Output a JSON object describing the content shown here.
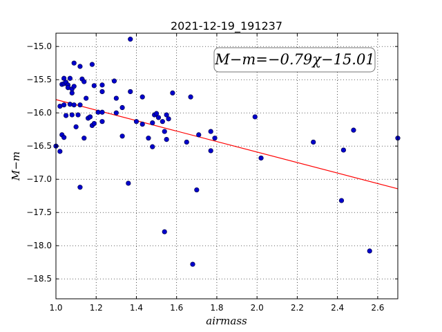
{
  "chart_data": {
    "type": "scatter",
    "title": "2021-12-19_191237",
    "xlabel": "airmass",
    "ylabel": "M−m",
    "xlim": [
      1.0,
      2.7
    ],
    "ylim": [
      -14.8,
      -18.8
    ],
    "y_inverted": true,
    "xticks": [
      "1.0",
      "1.2",
      "1.4",
      "1.6",
      "1.8",
      "2.0",
      "2.2",
      "2.4",
      "2.6"
    ],
    "yticks": [
      "−15.0",
      "−15.5",
      "−16.0",
      "−16.5",
      "−17.0",
      "−17.5",
      "−18.0",
      "−18.5"
    ],
    "grid": true,
    "annotation": "M−m=−0.79χ−15.01",
    "fit": {
      "slope": -0.79,
      "intercept": -15.01,
      "color": "#ff0000"
    },
    "point_color": "#0000cc",
    "points": [
      [
        1.0,
        -16.5
      ],
      [
        1.02,
        -16.58
      ],
      [
        1.02,
        -15.9
      ],
      [
        1.03,
        -16.33
      ],
      [
        1.04,
        -16.37
      ],
      [
        1.03,
        -15.57
      ],
      [
        1.04,
        -15.48
      ],
      [
        1.04,
        -15.56
      ],
      [
        1.05,
        -15.54
      ],
      [
        1.06,
        -15.58
      ],
      [
        1.06,
        -15.62
      ],
      [
        1.07,
        -15.48
      ],
      [
        1.04,
        -15.88
      ],
      [
        1.08,
        -15.7
      ],
      [
        1.08,
        -15.64
      ],
      [
        1.09,
        -15.25
      ],
      [
        1.09,
        -15.6
      ],
      [
        1.05,
        -16.04
      ],
      [
        1.07,
        -15.87
      ],
      [
        1.09,
        -15.88
      ],
      [
        1.08,
        -16.03
      ],
      [
        1.11,
        -16.03
      ],
      [
        1.1,
        -16.21
      ],
      [
        1.12,
        -15.3
      ],
      [
        1.12,
        -15.88
      ],
      [
        1.13,
        -15.49
      ],
      [
        1.14,
        -15.53
      ],
      [
        1.15,
        -15.78
      ],
      [
        1.16,
        -16.08
      ],
      [
        1.17,
        -16.06
      ],
      [
        1.18,
        -15.27
      ],
      [
        1.19,
        -15.59
      ],
      [
        1.18,
        -16.19
      ],
      [
        1.19,
        -16.16
      ],
      [
        1.21,
        -15.99
      ],
      [
        1.23,
        -15.68
      ],
      [
        1.23,
        -15.58
      ],
      [
        1.14,
        -16.38
      ],
      [
        1.23,
        -16.13
      ],
      [
        1.23,
        -15.99
      ],
      [
        1.29,
        -15.52
      ],
      [
        1.3,
        -15.78
      ],
      [
        1.3,
        -16.0
      ],
      [
        1.33,
        -15.92
      ],
      [
        1.33,
        -16.35
      ],
      [
        1.36,
        -17.06
      ],
      [
        1.37,
        -14.89
      ],
      [
        1.37,
        -15.68
      ],
      [
        1.4,
        -16.13
      ],
      [
        1.43,
        -15.76
      ],
      [
        1.43,
        -16.17
      ],
      [
        1.46,
        -16.38
      ],
      [
        1.48,
        -16.51
      ],
      [
        1.48,
        -16.15
      ],
      [
        1.49,
        -16.03
      ],
      [
        1.5,
        -16.01
      ],
      [
        1.51,
        -16.07
      ],
      [
        1.53,
        -16.13
      ],
      [
        1.54,
        -16.28
      ],
      [
        1.55,
        -16.4
      ],
      [
        1.55,
        -16.03
      ],
      [
        1.56,
        -16.09
      ],
      [
        1.58,
        -15.7
      ],
      [
        1.54,
        -17.79
      ],
      [
        1.12,
        -17.12
      ],
      [
        1.65,
        -16.44
      ],
      [
        1.67,
        -15.76
      ],
      [
        1.68,
        -18.28
      ],
      [
        1.7,
        -17.16
      ],
      [
        1.71,
        -16.33
      ],
      [
        1.77,
        -16.28
      ],
      [
        1.77,
        -16.57
      ],
      [
        1.79,
        -16.38
      ],
      [
        1.99,
        -16.06
      ],
      [
        2.02,
        -16.68
      ],
      [
        2.28,
        -16.44
      ],
      [
        2.42,
        -17.32
      ],
      [
        2.43,
        -16.56
      ],
      [
        2.48,
        -16.26
      ],
      [
        2.56,
        -18.08
      ],
      [
        2.7,
        -16.38
      ]
    ]
  }
}
